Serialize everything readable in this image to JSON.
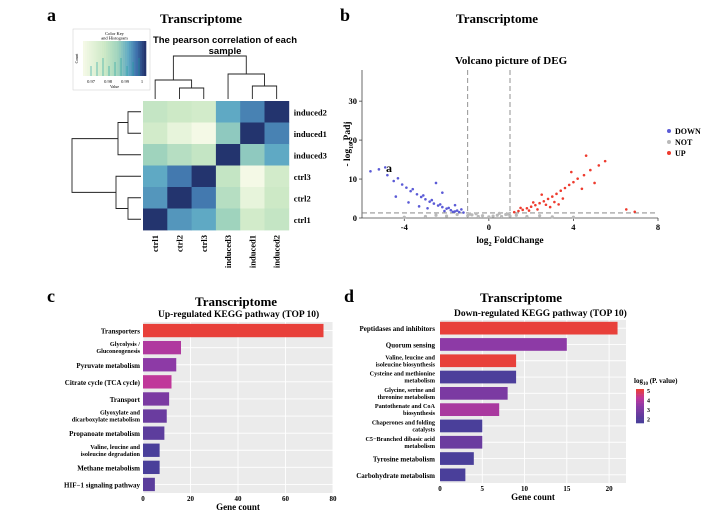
{
  "panels": {
    "a": {
      "letter": "a",
      "title": "Transcriptome"
    },
    "b": {
      "letter": "b",
      "title": "Transcriptome"
    },
    "c": {
      "letter": "c",
      "title": "Transcriptome"
    },
    "d": {
      "letter": "d",
      "title": "Transcriptome"
    }
  },
  "colors": {
    "down": "#5b5bd6",
    "not": "#b9b9b9",
    "up": "#ee3b2e",
    "bar_up_top": "#e8403a",
    "bar_mid": "#b0399f",
    "bar_low": "#4a3f9a",
    "panel_bg": "#ebebeb",
    "heat_low": "#f7fbea",
    "heat_high": "#1f3f7a"
  },
  "chart_data": [
    {
      "type": "heatmap",
      "title": "The pearson correlation of each sample",
      "color_key": {
        "title_line1": "Color Key",
        "title_line2": "and Histogram",
        "ticks": [
          "0.97",
          "0.98",
          "0.99",
          "1"
        ],
        "xlabel": "Value",
        "ylabel": "Count"
      },
      "rows": [
        "induced2",
        "induced1",
        "induced3",
        "ctrl3",
        "ctrl2",
        "ctrl1"
      ],
      "columns": [
        "ctrl1",
        "ctrl2",
        "ctrl3",
        "induced3",
        "induced1",
        "induced2"
      ],
      "values": [
        [
          0.972,
          0.97,
          0.968,
          0.988,
          0.992,
          1.0
        ],
        [
          0.968,
          0.96,
          0.955,
          0.982,
          1.0,
          0.992
        ],
        [
          0.98,
          0.975,
          0.972,
          1.0,
          0.982,
          0.988
        ],
        [
          0.988,
          0.993,
          1.0,
          0.972,
          0.955,
          0.968
        ],
        [
          0.99,
          1.0,
          0.993,
          0.975,
          0.96,
          0.97
        ],
        [
          1.0,
          0.99,
          0.988,
          0.98,
          0.968,
          0.972
        ]
      ]
    },
    {
      "type": "scatter",
      "title": "Volcano picture of DEG",
      "xlabel_main": "log",
      "xlabel_sub": "2",
      "xlabel_rest": " FoldChange",
      "ylabel_pre": "- log",
      "ylabel_sub": "10",
      "ylabel_rest": " Padj",
      "xlim": [
        -6,
        8
      ],
      "ylim": [
        0,
        38
      ],
      "xticks": [
        "-4",
        "0",
        "4",
        "8"
      ],
      "xtick_values": [
        -4,
        0,
        4,
        8
      ],
      "yticks": [
        "0",
        "10",
        "20",
        "30"
      ],
      "ytick_values": [
        0,
        10,
        20,
        30
      ],
      "fc_threshold": [
        -1,
        1
      ],
      "padj_threshold": 1.3,
      "legend": [
        "DOWN",
        "NOT",
        "UP"
      ],
      "legend_position": "right",
      "annotation": "a",
      "down_points": [
        [
          -5.2,
          12.5
        ],
        [
          -4.8,
          11.0
        ],
        [
          -4.5,
          9.5
        ],
        [
          -4.1,
          8.6
        ],
        [
          -3.9,
          7.8
        ],
        [
          -3.7,
          6.9
        ],
        [
          -3.4,
          6.1
        ],
        [
          -3.2,
          5.4
        ],
        [
          -3.0,
          4.8
        ],
        [
          -2.8,
          4.2
        ],
        [
          -2.6,
          3.7
        ],
        [
          -2.4,
          3.2
        ],
        [
          -2.2,
          2.8
        ],
        [
          -2.0,
          2.4
        ],
        [
          -1.8,
          2.0
        ],
        [
          -1.6,
          1.7
        ],
        [
          -1.4,
          1.5
        ],
        [
          -1.2,
          1.4
        ],
        [
          -4.3,
          10.2
        ],
        [
          -3.6,
          7.4
        ],
        [
          -3.1,
          5.8
        ],
        [
          -2.7,
          4.6
        ],
        [
          -2.3,
          3.5
        ],
        [
          -1.9,
          2.6
        ],
        [
          -1.5,
          1.9
        ],
        [
          -5.6,
          12.0
        ],
        [
          -4.9,
          13.0
        ],
        [
          -2.5,
          9.0
        ],
        [
          -1.3,
          2.2
        ],
        [
          -3.3,
          3.0
        ],
        [
          -2.9,
          2.5
        ],
        [
          -2.1,
          1.8
        ],
        [
          -1.7,
          1.6
        ],
        [
          -3.8,
          4.0
        ],
        [
          -4.4,
          5.5
        ],
        [
          -2.2,
          6.5
        ],
        [
          -1.6,
          3.3
        ]
      ],
      "not_points": [
        [
          -3.0,
          0.4
        ],
        [
          -2.5,
          0.7
        ],
        [
          -2.0,
          0.5
        ],
        [
          -1.5,
          0.9
        ],
        [
          -1.0,
          0.6
        ],
        [
          -0.8,
          0.8
        ],
        [
          -0.5,
          0.4
        ],
        [
          -0.3,
          0.6
        ],
        [
          0.0,
          0.3
        ],
        [
          0.2,
          0.5
        ],
        [
          0.4,
          0.7
        ],
        [
          0.6,
          0.4
        ],
        [
          0.8,
          0.9
        ],
        [
          1.0,
          0.5
        ],
        [
          1.3,
          0.7
        ],
        [
          1.8,
          0.4
        ],
        [
          2.4,
          0.6
        ],
        [
          3.0,
          0.3
        ],
        [
          -0.6,
          1.1
        ],
        [
          0.5,
          1.2
        ],
        [
          -4.0,
          0.2
        ],
        [
          4.0,
          0.2
        ],
        [
          -0.9,
          1.0
        ],
        [
          0.9,
          1.0
        ]
      ],
      "up_points": [
        [
          1.2,
          1.5
        ],
        [
          1.4,
          1.8
        ],
        [
          1.6,
          2.1
        ],
        [
          1.8,
          2.5
        ],
        [
          2.0,
          2.9
        ],
        [
          2.2,
          3.3
        ],
        [
          2.4,
          3.8
        ],
        [
          2.6,
          4.3
        ],
        [
          2.8,
          4.9
        ],
        [
          3.0,
          5.5
        ],
        [
          3.2,
          6.2
        ],
        [
          3.4,
          7.0
        ],
        [
          3.6,
          7.7
        ],
        [
          3.8,
          8.5
        ],
        [
          4.0,
          9.2
        ],
        [
          4.2,
          10.1
        ],
        [
          4.5,
          11.0
        ],
        [
          4.8,
          12.3
        ],
        [
          5.2,
          13.5
        ],
        [
          1.5,
          2.6
        ],
        [
          2.1,
          4.0
        ],
        [
          2.7,
          3.4
        ],
        [
          3.1,
          4.1
        ],
        [
          3.5,
          5.0
        ],
        [
          1.9,
          1.9
        ],
        [
          2.3,
          2.2
        ],
        [
          2.9,
          2.8
        ],
        [
          3.3,
          3.5
        ],
        [
          5.5,
          14.6
        ],
        [
          4.6,
          16.0
        ],
        [
          3.9,
          11.8
        ],
        [
          6.5,
          2.2
        ],
        [
          6.9,
          1.6
        ],
        [
          5.0,
          9.0
        ],
        [
          4.4,
          7.5
        ],
        [
          2.5,
          6.0
        ]
      ]
    },
    {
      "type": "bar",
      "title": "Up-regulated KEGG pathway (TOP 10)",
      "xlabel": "Gene count",
      "xlim": [
        0,
        80
      ],
      "xticks": [
        "0",
        "20",
        "40",
        "60",
        "80"
      ],
      "xtick_values": [
        0,
        20,
        40,
        60,
        80
      ],
      "categories": [
        "Transporters",
        "Glycolysis / Gluconeogenesis",
        "Pyruvate metabolism",
        "Citrate cycle (TCA cycle)",
        "Transport",
        "Glyoxylate and dicarboxylate metabolism",
        "Propanoate metabolism",
        "Valine, leucine and isoleucine degradation",
        "Methane metabolism",
        "HIF−1 signaling pathway"
      ],
      "values": [
        76,
        16,
        14,
        12,
        11,
        10,
        9,
        7,
        7,
        5
      ],
      "bar_colors": [
        "#e8403a",
        "#b0399f",
        "#8d3aa6",
        "#c0379a",
        "#7b3aa2",
        "#6a3c9f",
        "#5d3d9d",
        "#4a3f9a",
        "#4a3f9a",
        "#5b3d9c"
      ]
    },
    {
      "type": "bar",
      "title": "Down-regulated KEGG pathway (TOP 10)",
      "xlabel": "Gene count",
      "xlim": [
        0,
        22
      ],
      "xticks": [
        "0",
        "5",
        "10",
        "15",
        "20"
      ],
      "xtick_values": [
        0,
        5,
        10,
        15,
        20
      ],
      "categories": [
        "Peptidases and inhibitors",
        "Quorum sensing",
        "Valine, leucine and isoleucine biosynthesis",
        "Cysteine and methionine metabolism",
        "Glycine, serine and threonine metabolism",
        "Pantothenate and CoA biosynthesis",
        "Chaperones and folding catalysts",
        "C5−Branched dibasic acid metabolism",
        "Tyrosine metabolism",
        "Carbohydrate metabolism"
      ],
      "values": [
        21,
        15,
        9,
        9,
        8,
        7,
        5,
        5,
        4,
        3
      ],
      "bar_colors": [
        "#e8403a",
        "#8d3aa6",
        "#e8403a",
        "#4d3f9b",
        "#7b3aa2",
        "#a9399f",
        "#4a3f9a",
        "#6b3c9f",
        "#4a3f9a",
        "#4a3f9a"
      ],
      "legend_title": "log",
      "legend_title_sub": "10",
      "legend_title_rest": " (P. value)",
      "legend_ticks": [
        "5",
        "4",
        "3",
        "2"
      ]
    }
  ]
}
